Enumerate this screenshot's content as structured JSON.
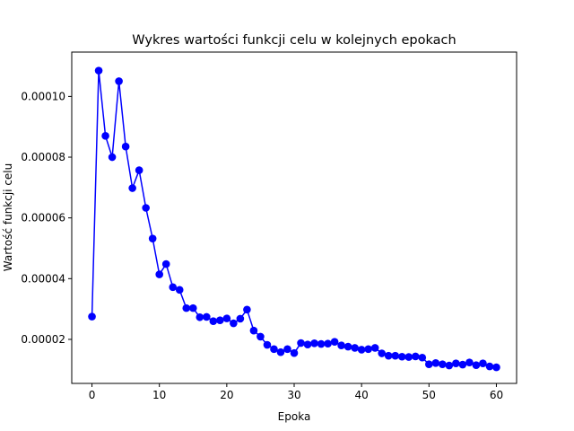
{
  "chart_data": {
    "type": "line",
    "title": "Wykres wartości funkcji celu w kolejnych epokach",
    "xlabel": "Epoka",
    "ylabel": "Wartość funkcji celu",
    "xlim": [
      -3,
      63
    ],
    "ylim": [
      5.5e-06,
      0.0001146
    ],
    "xticks": [
      0,
      10,
      20,
      30,
      40,
      50,
      60
    ],
    "xtick_labels": [
      "0",
      "10",
      "20",
      "30",
      "40",
      "50",
      "60"
    ],
    "yticks": [
      2e-05,
      4e-05,
      6e-05,
      8e-05,
      0.0001
    ],
    "ytick_labels": [
      "0.00002",
      "0.00004",
      "0.00006",
      "0.00008",
      "0.00010"
    ],
    "grid": false,
    "series": [
      {
        "color": "#0000ff",
        "marker": "circle",
        "x": [
          0,
          1,
          2,
          3,
          4,
          5,
          6,
          7,
          8,
          9,
          10,
          11,
          12,
          13,
          14,
          15,
          16,
          17,
          18,
          19,
          20,
          21,
          22,
          23,
          24,
          25,
          26,
          27,
          28,
          29,
          30,
          31,
          32,
          33,
          34,
          35,
          36,
          37,
          38,
          39,
          40,
          41,
          42,
          43,
          44,
          45,
          46,
          47,
          48,
          49,
          50,
          51,
          52,
          53,
          54,
          55,
          56,
          57,
          58,
          59,
          60
        ],
        "values": [
          2.75e-05,
          0.0001085,
          8.7e-05,
          8e-05,
          0.000105,
          8.35e-05,
          6.98e-05,
          7.57e-05,
          6.33e-05,
          5.32e-05,
          4.14e-05,
          4.48e-05,
          3.72e-05,
          3.63e-05,
          3.03e-05,
          3.03e-05,
          2.73e-05,
          2.74e-05,
          2.6e-05,
          2.63e-05,
          2.69e-05,
          2.53e-05,
          2.68e-05,
          2.98e-05,
          2.29e-05,
          2.09e-05,
          1.82e-05,
          1.68e-05,
          1.58e-05,
          1.68e-05,
          1.55e-05,
          1.88e-05,
          1.83e-05,
          1.87e-05,
          1.85e-05,
          1.86e-05,
          1.92e-05,
          1.8e-05,
          1.76e-05,
          1.72e-05,
          1.66e-05,
          1.68e-05,
          1.72e-05,
          1.54e-05,
          1.46e-05,
          1.46e-05,
          1.43e-05,
          1.42e-05,
          1.44e-05,
          1.4e-05,
          1.18e-05,
          1.22e-05,
          1.18e-05,
          1.14e-05,
          1.21e-05,
          1.17e-05,
          1.24e-05,
          1.15e-05,
          1.21e-05,
          1.11e-05,
          1.08e-05
        ]
      }
    ]
  }
}
